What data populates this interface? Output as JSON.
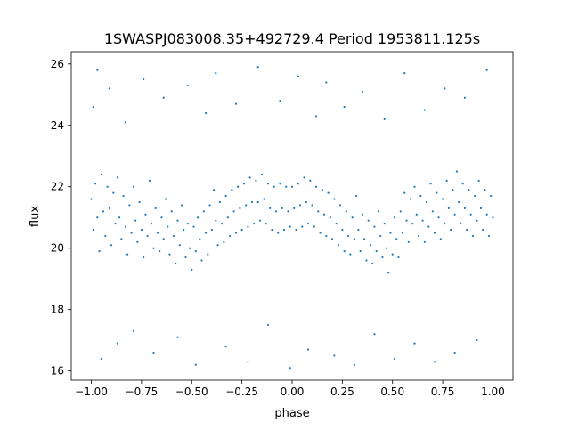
{
  "colors": {
    "points": "#1f77b4",
    "axes": "#000000",
    "background": "#ffffff"
  },
  "chart_data": {
    "type": "scatter",
    "title": "1SWASPJ083008.35+492729.4 Period 1953811.125s",
    "xlabel": "phase",
    "ylabel": "flux",
    "xlim": [
      -1.1,
      1.1
    ],
    "ylim": [
      15.7,
      26.4
    ],
    "grid": false,
    "legend": "none",
    "x_ticks": [
      -1.0,
      -0.75,
      -0.5,
      -0.25,
      0.0,
      0.25,
      0.5,
      0.75,
      1.0
    ],
    "x_tick_labels": [
      "−1.00",
      "−0.75",
      "−0.50",
      "−0.25",
      "0.00",
      "0.25",
      "0.50",
      "0.75",
      "1.00"
    ],
    "y_ticks": [
      16,
      18,
      20,
      22,
      24,
      26
    ],
    "y_tick_labels": [
      "16",
      "18",
      "20",
      "22",
      "24",
      "26"
    ],
    "series": [
      {
        "x_range": [
          -1.0,
          1.0
        ],
        "y_range": [
          16.0,
          26.0
        ],
        "points": [
          [
            -1.0,
            21.6
          ],
          [
            -0.99,
            20.6
          ],
          [
            -0.98,
            22.1
          ],
          [
            -0.97,
            21.0
          ],
          [
            -0.96,
            19.9
          ],
          [
            -0.95,
            22.4
          ],
          [
            -0.94,
            21.2
          ],
          [
            -0.93,
            20.4
          ],
          [
            -0.92,
            22.0
          ],
          [
            -0.91,
            21.3
          ],
          [
            -0.9,
            20.1
          ],
          [
            -0.89,
            21.8
          ],
          [
            -0.88,
            20.8
          ],
          [
            -0.87,
            22.3
          ],
          [
            -0.86,
            21.0
          ],
          [
            -0.85,
            20.3
          ],
          [
            -0.84,
            21.7
          ],
          [
            -0.83,
            20.7
          ],
          [
            -0.82,
            19.8
          ],
          [
            -0.81,
            21.4
          ],
          [
            -0.8,
            20.5
          ],
          [
            -0.79,
            22.0
          ],
          [
            -0.78,
            20.9
          ],
          [
            -0.77,
            20.2
          ],
          [
            -0.76,
            21.5
          ],
          [
            -0.75,
            20.6
          ],
          [
            -0.74,
            19.7
          ],
          [
            -0.73,
            21.1
          ],
          [
            -0.72,
            20.4
          ],
          [
            -0.71,
            22.2
          ],
          [
            -0.7,
            20.8
          ],
          [
            -0.69,
            20.0
          ],
          [
            -0.68,
            21.3
          ],
          [
            -0.67,
            20.5
          ],
          [
            -0.66,
            19.9
          ],
          [
            -0.65,
            21.0
          ],
          [
            -0.64,
            20.3
          ],
          [
            -0.63,
            21.6
          ],
          [
            -0.62,
            20.7
          ],
          [
            -0.61,
            19.8
          ],
          [
            -0.6,
            21.2
          ],
          [
            -0.59,
            20.4
          ],
          [
            -0.58,
            19.5
          ],
          [
            -0.57,
            20.9
          ],
          [
            -0.56,
            20.1
          ],
          [
            -0.55,
            21.4
          ],
          [
            -0.54,
            20.6
          ],
          [
            -0.53,
            19.7
          ],
          [
            -0.52,
            20.8
          ],
          [
            -0.51,
            20.0
          ],
          [
            -0.5,
            19.3
          ],
          [
            -0.49,
            20.7
          ],
          [
            -0.48,
            19.9
          ],
          [
            -0.47,
            21.0
          ],
          [
            -0.46,
            20.3
          ],
          [
            -0.45,
            19.6
          ],
          [
            -0.44,
            21.2
          ],
          [
            -0.43,
            20.5
          ],
          [
            -0.42,
            19.8
          ],
          [
            -0.41,
            21.4
          ],
          [
            -0.4,
            20.6
          ],
          [
            -0.39,
            21.9
          ],
          [
            -0.38,
            20.9
          ],
          [
            -0.37,
            20.1
          ],
          [
            -0.36,
            21.5
          ],
          [
            -0.35,
            20.8
          ],
          [
            -0.34,
            20.2
          ],
          [
            -0.33,
            21.7
          ],
          [
            -0.32,
            21.0
          ],
          [
            -0.31,
            20.4
          ],
          [
            -0.3,
            21.9
          ],
          [
            -0.29,
            21.2
          ],
          [
            -0.28,
            20.5
          ],
          [
            -0.27,
            22.0
          ],
          [
            -0.26,
            21.3
          ],
          [
            -0.25,
            20.6
          ],
          [
            -0.24,
            22.1
          ],
          [
            -0.23,
            21.4
          ],
          [
            -0.22,
            20.7
          ],
          [
            -0.21,
            22.3
          ],
          [
            -0.2,
            21.5
          ],
          [
            -0.19,
            20.8
          ],
          [
            -0.18,
            22.2
          ],
          [
            -0.17,
            21.5
          ],
          [
            -0.16,
            20.9
          ],
          [
            -0.15,
            22.4
          ],
          [
            -0.14,
            21.6
          ],
          [
            -0.13,
            20.8
          ],
          [
            -0.12,
            22.1
          ],
          [
            -0.11,
            21.3
          ],
          [
            -0.1,
            20.6
          ],
          [
            -0.09,
            22.0
          ],
          [
            -0.08,
            21.2
          ],
          [
            -0.07,
            20.5
          ],
          [
            -0.06,
            22.1
          ],
          [
            -0.05,
            21.3
          ],
          [
            -0.04,
            20.6
          ],
          [
            -0.03,
            22.0
          ],
          [
            -0.02,
            21.2
          ],
          [
            -0.01,
            20.7
          ],
          [
            0.0,
            22.0
          ],
          [
            0.01,
            21.3
          ],
          [
            0.02,
            20.6
          ],
          [
            0.03,
            22.1
          ],
          [
            0.04,
            21.4
          ],
          [
            0.05,
            20.7
          ],
          [
            0.06,
            22.3
          ],
          [
            0.07,
            21.5
          ],
          [
            0.08,
            20.8
          ],
          [
            0.09,
            22.2
          ],
          [
            0.1,
            21.4
          ],
          [
            0.11,
            20.7
          ],
          [
            0.12,
            22.0
          ],
          [
            0.13,
            21.2
          ],
          [
            0.14,
            20.5
          ],
          [
            0.15,
            21.9
          ],
          [
            0.16,
            21.1
          ],
          [
            0.17,
            20.4
          ],
          [
            0.18,
            21.8
          ],
          [
            0.19,
            21.0
          ],
          [
            0.2,
            20.3
          ],
          [
            0.21,
            21.6
          ],
          [
            0.22,
            20.8
          ],
          [
            0.23,
            20.1
          ],
          [
            0.24,
            21.4
          ],
          [
            0.25,
            20.6
          ],
          [
            0.26,
            19.9
          ],
          [
            0.27,
            21.2
          ],
          [
            0.28,
            20.4
          ],
          [
            0.29,
            19.8
          ],
          [
            0.3,
            21.0
          ],
          [
            0.31,
            20.3
          ],
          [
            0.32,
            21.7
          ],
          [
            0.33,
            20.6
          ],
          [
            0.34,
            19.9
          ],
          [
            0.35,
            21.1
          ],
          [
            0.36,
            20.3
          ],
          [
            0.37,
            19.6
          ],
          [
            0.38,
            20.9
          ],
          [
            0.39,
            20.1
          ],
          [
            0.4,
            19.5
          ],
          [
            0.41,
            20.7
          ],
          [
            0.42,
            19.9
          ],
          [
            0.43,
            21.2
          ],
          [
            0.44,
            20.4
          ],
          [
            0.45,
            19.7
          ],
          [
            0.46,
            20.8
          ],
          [
            0.47,
            20.0
          ],
          [
            0.48,
            19.2
          ],
          [
            0.49,
            20.5
          ],
          [
            0.5,
            19.8
          ],
          [
            0.51,
            21.0
          ],
          [
            0.52,
            20.3
          ],
          [
            0.53,
            19.7
          ],
          [
            0.54,
            21.2
          ],
          [
            0.55,
            20.5
          ],
          [
            0.56,
            21.8
          ],
          [
            0.57,
            20.9
          ],
          [
            0.58,
            20.2
          ],
          [
            0.59,
            21.6
          ],
          [
            0.6,
            20.8
          ],
          [
            0.61,
            22.0
          ],
          [
            0.62,
            21.1
          ],
          [
            0.63,
            20.4
          ],
          [
            0.64,
            21.7
          ],
          [
            0.65,
            20.9
          ],
          [
            0.66,
            20.2
          ],
          [
            0.67,
            21.5
          ],
          [
            0.68,
            20.7
          ],
          [
            0.69,
            22.1
          ],
          [
            0.7,
            21.2
          ],
          [
            0.71,
            20.5
          ],
          [
            0.72,
            21.8
          ],
          [
            0.73,
            21.0
          ],
          [
            0.74,
            20.3
          ],
          [
            0.75,
            21.6
          ],
          [
            0.76,
            20.8
          ],
          [
            0.77,
            22.2
          ],
          [
            0.78,
            21.3
          ],
          [
            0.79,
            20.6
          ],
          [
            0.8,
            21.9
          ],
          [
            0.81,
            21.1
          ],
          [
            0.82,
            22.5
          ],
          [
            0.83,
            21.5
          ],
          [
            0.84,
            20.8
          ],
          [
            0.85,
            22.1
          ],
          [
            0.86,
            21.3
          ],
          [
            0.87,
            20.6
          ],
          [
            0.88,
            21.9
          ],
          [
            0.89,
            21.1
          ],
          [
            0.9,
            20.4
          ],
          [
            0.91,
            21.7
          ],
          [
            0.92,
            20.9
          ],
          [
            0.93,
            22.2
          ],
          [
            0.94,
            21.3
          ],
          [
            0.95,
            20.6
          ],
          [
            0.96,
            21.9
          ],
          [
            0.97,
            21.1
          ],
          [
            0.98,
            20.4
          ],
          [
            0.99,
            21.7
          ],
          [
            1.0,
            21.0
          ],
          [
            -0.99,
            24.6
          ],
          [
            -0.97,
            25.8
          ],
          [
            -0.95,
            16.4
          ],
          [
            -0.91,
            25.2
          ],
          [
            -0.87,
            16.9
          ],
          [
            -0.83,
            24.1
          ],
          [
            -0.79,
            17.3
          ],
          [
            -0.74,
            25.5
          ],
          [
            -0.69,
            16.6
          ],
          [
            -0.64,
            24.9
          ],
          [
            -0.57,
            17.1
          ],
          [
            -0.52,
            25.3
          ],
          [
            -0.48,
            16.2
          ],
          [
            -0.43,
            24.4
          ],
          [
            -0.38,
            25.7
          ],
          [
            -0.33,
            16.8
          ],
          [
            -0.28,
            24.7
          ],
          [
            -0.22,
            16.3
          ],
          [
            -0.17,
            25.9
          ],
          [
            -0.12,
            17.5
          ],
          [
            -0.06,
            24.8
          ],
          [
            -0.01,
            16.1
          ],
          [
            0.03,
            25.6
          ],
          [
            0.08,
            16.7
          ],
          [
            0.12,
            24.3
          ],
          [
            0.17,
            25.4
          ],
          [
            0.21,
            16.5
          ],
          [
            0.26,
            24.6
          ],
          [
            0.31,
            16.2
          ],
          [
            0.35,
            25.1
          ],
          [
            0.41,
            17.2
          ],
          [
            0.46,
            24.2
          ],
          [
            0.51,
            16.4
          ],
          [
            0.56,
            25.7
          ],
          [
            0.61,
            16.9
          ],
          [
            0.66,
            24.5
          ],
          [
            0.71,
            16.3
          ],
          [
            0.76,
            25.2
          ],
          [
            0.81,
            16.6
          ],
          [
            0.86,
            24.9
          ],
          [
            0.92,
            17.0
          ],
          [
            0.97,
            25.8
          ]
        ]
      }
    ]
  }
}
